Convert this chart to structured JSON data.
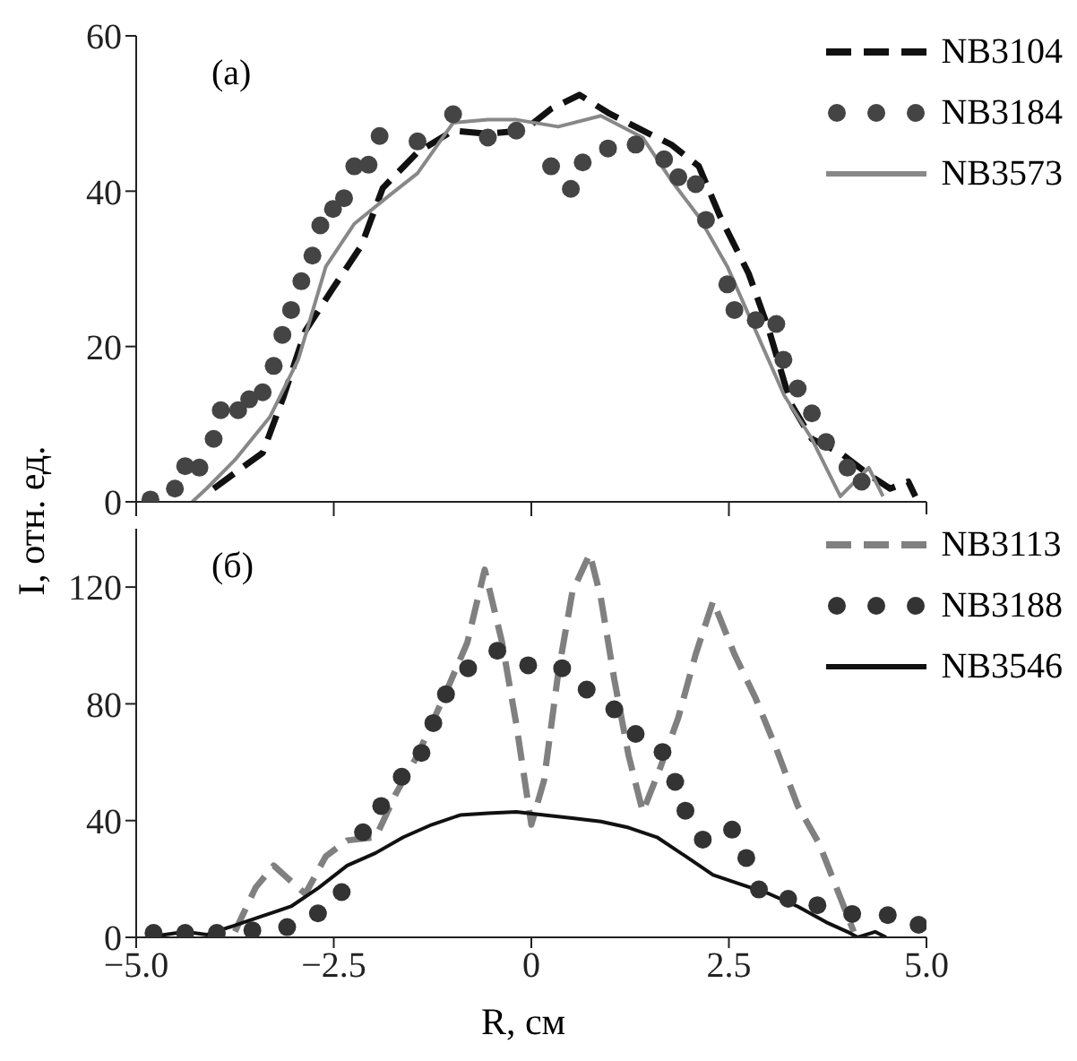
{
  "chart_data": [
    {
      "type": "line",
      "ylabel": "I, отн. ед.",
      "annotations": [
        "(a)"
      ],
      "xlim": [
        -5,
        5
      ],
      "xticks": [
        {
          "value": -5,
          "label": null
        },
        {
          "value": -2.5,
          "label": null
        },
        {
          "value": 0,
          "label": null
        },
        {
          "value": 2.5,
          "label": null
        },
        {
          "value": 5,
          "label": null
        }
      ],
      "ylim": [
        0,
        60
      ],
      "yticks": [
        0,
        20,
        40,
        60
      ],
      "tick_labels": "y",
      "legend": "top right",
      "grid": false,
      "series": [
        {
          "name": "NB3104",
          "line_style": "dashed",
          "color": "#111111",
          "x": [
            -4.02,
            -3.66,
            -3.4,
            -3.13,
            -2.86,
            -2.51,
            -2.15,
            -1.88,
            -1.44,
            -0.99,
            -0.55,
            -0.1,
            0.25,
            0.61,
            0.97,
            1.41,
            1.77,
            2.12,
            2.39,
            2.75,
            3.01,
            3.28,
            3.55,
            3.91,
            4.27,
            4.54,
            4.77,
            4.86
          ],
          "values": [
            1.7,
            4.4,
            6.3,
            13.7,
            22,
            27.5,
            33,
            40.4,
            45,
            47.8,
            47.4,
            47.8,
            50.6,
            52.4,
            50.1,
            47.8,
            46,
            43.2,
            36.7,
            29.4,
            22,
            12.7,
            8.1,
            6.3,
            3.5,
            1.7,
            2.6,
            0.7
          ]
        },
        {
          "name": "NB3184",
          "type": "scatter",
          "marker": "circle",
          "color": "#444444",
          "x": [
            -4.82,
            -4.51,
            -4.38,
            -4.2,
            -4.02,
            -3.93,
            -3.71,
            -3.57,
            -3.4,
            -3.26,
            -3.15,
            -3.04,
            -2.91,
            -2.77,
            -2.67,
            -2.51,
            -2.37,
            -2.24,
            -2.06,
            -1.92,
            -1.44,
            -0.99,
            -0.55,
            -0.19,
            0.25,
            0.5,
            0.65,
            0.97,
            1.32,
            1.68,
            1.86,
            2.08,
            2.21,
            2.48,
            2.57,
            2.84,
            3.1,
            3.19,
            3.37,
            3.55,
            3.73,
            4.0,
            4.18
          ],
          "values": [
            0.3,
            1.7,
            4.6,
            4.4,
            8.1,
            11.8,
            11.8,
            13.2,
            14.1,
            17.5,
            21.5,
            24.7,
            28.4,
            31.7,
            35.6,
            37.7,
            39.1,
            43.2,
            43.4,
            47.1,
            46.4,
            49.9,
            46.9,
            47.8,
            43.2,
            40.3,
            43.7,
            45.5,
            46,
            44.1,
            41.8,
            40.9,
            36.3,
            28,
            24.7,
            23.4,
            22.9,
            18.3,
            14.6,
            11.4,
            7.7,
            4.4,
            2.6
          ]
        },
        {
          "name": "NB3573",
          "line_style": "solid",
          "color": "#888888",
          "x": [
            -4.29,
            -4.11,
            -3.75,
            -3.31,
            -2.95,
            -2.6,
            -2.24,
            -1.79,
            -1.44,
            -0.99,
            -0.55,
            -0.19,
            0.34,
            0.88,
            1.41,
            1.77,
            2.12,
            2.48,
            2.84,
            3.2,
            3.55,
            3.91,
            4.27,
            4.45
          ],
          "values": [
            0,
            1.7,
            5.4,
            10.9,
            18.3,
            30.3,
            35.8,
            39.5,
            42.3,
            48.8,
            49.2,
            49.2,
            48.3,
            49.7,
            46.9,
            41.4,
            36.7,
            30.3,
            22,
            13.7,
            8.1,
            0.7,
            4.4,
            0.7
          ]
        }
      ]
    },
    {
      "type": "line",
      "xlabel": "R, см",
      "annotations": [
        "(б)"
      ],
      "xlim": [
        -5,
        5
      ],
      "xticks": [
        {
          "value": -5,
          "label": "−5.0"
        },
        {
          "value": -2.5,
          "label": "−2.5"
        },
        0,
        {
          "value": 2.5,
          "label": "2.5"
        },
        {
          "value": 5,
          "label": "5.0"
        }
      ],
      "ylim": [
        0,
        140
      ],
      "yticks": [
        0,
        40,
        80,
        120
      ],
      "legend": "top right",
      "grid": false,
      "series": [
        {
          "name": "NB3113",
          "line_style": "dashed",
          "color": "#808080",
          "x": [
            -3.75,
            -3.49,
            -3.26,
            -3.04,
            -2.86,
            -2.6,
            -2.33,
            -1.97,
            -1.71,
            -1.44,
            -1.08,
            -0.81,
            -0.59,
            -0.37,
            -0.19,
            0,
            0.16,
            0.34,
            0.52,
            0.74,
            0.88,
            1.05,
            1.23,
            1.41,
            1.63,
            1.86,
            2.08,
            2.3,
            2.57,
            2.84,
            3.1,
            3.37,
            3.64,
            3.86,
            4.08
          ],
          "values": [
            2,
            17,
            24.6,
            19.2,
            14.9,
            27.8,
            33.2,
            34.3,
            49.4,
            62.4,
            84,
            101,
            126,
            101,
            73,
            38.6,
            53.7,
            90.5,
            118.5,
            131.4,
            116.3,
            88.3,
            62.4,
            43,
            58,
            75.3,
            97,
            115.2,
            97,
            81.8,
            64.6,
            45.1,
            32.2,
            17.1,
            1.9
          ]
        },
        {
          "name": "NB3188",
          "type": "scatter",
          "marker": "circle",
          "color": "#333333",
          "x": [
            -4.78,
            -4.38,
            -3.98,
            -3.53,
            -3.09,
            -2.7,
            -2.4,
            -2.13,
            -1.9,
            -1.64,
            -1.39,
            -1.24,
            -1.08,
            -0.8,
            -0.43,
            -0.04,
            0.39,
            0.7,
            1.05,
            1.32,
            1.66,
            1.82,
            1.95,
            2.17,
            2.54,
            2.72,
            2.88,
            3.25,
            3.62,
            4.06,
            4.51,
            4.9
          ],
          "values": [
            1.5,
            1.5,
            1.5,
            2.4,
            3.5,
            8.2,
            15.5,
            36,
            45,
            55,
            63.2,
            73.4,
            83.3,
            92.2,
            98.2,
            93.2,
            92.2,
            84.9,
            78.1,
            69.7,
            63.5,
            53.3,
            43.4,
            33.5,
            36.9,
            27.2,
            16.4,
            13.2,
            11,
            8,
            7.6,
            4.3
          ]
        },
        {
          "name": "NB3546",
          "line_style": "solid",
          "color": "#111111",
          "x": [
            -4.87,
            -4.38,
            -4.11,
            -3.75,
            -3.4,
            -3.04,
            -2.69,
            -2.33,
            -1.97,
            -1.62,
            -1.26,
            -0.9,
            -0.55,
            -0.19,
            0.16,
            0.52,
            0.88,
            1.23,
            1.59,
            1.95,
            2.3,
            2.66,
            3.01,
            3.37,
            3.73,
            4.0,
            4.13,
            4.35,
            4.49
          ],
          "values": [
            0,
            1.9,
            0.9,
            4.1,
            7.3,
            10.6,
            17,
            24.6,
            28.9,
            34.3,
            38.6,
            41.9,
            42.5,
            43,
            41.9,
            40.8,
            39.7,
            37.6,
            34.3,
            27.8,
            21.4,
            18.1,
            14.9,
            10.6,
            5.2,
            1.9,
            0,
            1.9,
            0
          ]
        }
      ]
    }
  ]
}
